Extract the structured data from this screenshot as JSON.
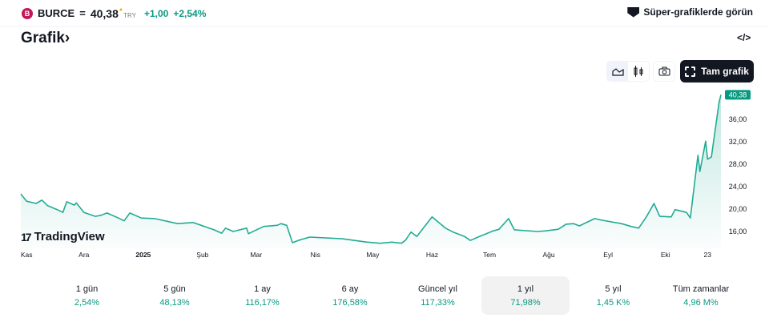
{
  "header": {
    "logo_text": "B",
    "symbol": "BURCE",
    "separator": "=",
    "price": "40,38",
    "currency": "TRY",
    "change": "+1,00",
    "change_percent": "+2,54%",
    "super_charts": "Süper-grafiklerde görün",
    "super_icon": "supercharts-icon"
  },
  "section": {
    "title": "Grafik",
    "chevron": "›",
    "embed": "</>"
  },
  "toolbar": {
    "line_icon": "area-chart-icon",
    "candle_icon": "candles-icon",
    "camera_icon": "camera-icon",
    "full_chart": "Tam grafik",
    "full_icon": "fullscreen-icon"
  },
  "colors": {
    "line": "#22ab94",
    "accent": "#089981",
    "dark": "#131722"
  },
  "watermark": "TradingView",
  "chart_data": {
    "type": "area",
    "ylim": [
      13,
      41
    ],
    "y_ticks": [
      "16,00",
      "20,00",
      "24,00",
      "28,00",
      "32,00",
      "36,00"
    ],
    "y_tick_values": [
      16,
      20,
      24,
      28,
      32,
      36
    ],
    "last_value_label": "40,38",
    "last_value": 40.38,
    "x_ticks": [
      {
        "label": "Kas",
        "date": "2024-11-01"
      },
      {
        "label": "Ara",
        "date": "2024-12-01"
      },
      {
        "label": "2025",
        "date": "2025-01-01"
      },
      {
        "label": "Şub",
        "date": "2025-02-01"
      },
      {
        "label": "Mar",
        "date": "2025-03-01"
      },
      {
        "label": "Nis",
        "date": "2025-04-01"
      },
      {
        "label": "May",
        "date": "2025-05-01"
      },
      {
        "label": "Haz",
        "date": "2025-06-01"
      },
      {
        "label": "Tem",
        "date": "2025-07-01"
      },
      {
        "label": "Ağu",
        "date": "2025-08-01"
      },
      {
        "label": "Eyl",
        "date": "2025-09-01"
      },
      {
        "label": "Eki",
        "date": "2025-10-01"
      },
      {
        "label": "23",
        "date": "2025-10-23"
      }
    ],
    "points": [
      [
        "2024-10-29",
        22.7
      ],
      [
        "2024-11-01",
        21.4
      ],
      [
        "2024-11-06",
        21.0
      ],
      [
        "2024-11-09",
        21.6
      ],
      [
        "2024-11-12",
        20.6
      ],
      [
        "2024-11-17",
        19.9
      ],
      [
        "2024-11-20",
        19.4
      ],
      [
        "2024-11-22",
        21.3
      ],
      [
        "2024-11-26",
        20.7
      ],
      [
        "2024-11-27",
        21.1
      ],
      [
        "2024-12-01",
        19.4
      ],
      [
        "2024-12-07",
        18.7
      ],
      [
        "2024-12-10",
        18.9
      ],
      [
        "2024-12-13",
        19.3
      ],
      [
        "2024-12-19",
        18.4
      ],
      [
        "2024-12-22",
        17.9
      ],
      [
        "2024-12-25",
        19.3
      ],
      [
        "2024-12-27",
        19.0
      ],
      [
        "2024-12-31",
        18.4
      ],
      [
        "2025-01-07",
        18.3
      ],
      [
        "2025-01-19",
        17.4
      ],
      [
        "2025-01-27",
        17.6
      ],
      [
        "2025-02-02",
        16.9
      ],
      [
        "2025-02-07",
        16.3
      ],
      [
        "2025-02-11",
        15.7
      ],
      [
        "2025-02-13",
        16.6
      ],
      [
        "2025-02-17",
        16.0
      ],
      [
        "2025-02-24",
        16.6
      ],
      [
        "2025-02-25",
        15.6
      ],
      [
        "2025-02-28",
        16.1
      ],
      [
        "2025-03-05",
        16.9
      ],
      [
        "2025-03-12",
        17.1
      ],
      [
        "2025-03-14",
        17.4
      ],
      [
        "2025-03-17",
        17.1
      ],
      [
        "2025-03-20",
        14.0
      ],
      [
        "2025-03-23",
        14.4
      ],
      [
        "2025-03-29",
        15.0
      ],
      [
        "2025-04-15",
        14.7
      ],
      [
        "2025-04-28",
        14.1
      ],
      [
        "2025-05-05",
        13.9
      ],
      [
        "2025-05-11",
        14.1
      ],
      [
        "2025-05-16",
        13.9
      ],
      [
        "2025-05-18",
        14.4
      ],
      [
        "2025-05-21",
        15.9
      ],
      [
        "2025-05-24",
        15.1
      ],
      [
        "2025-06-01",
        18.6
      ],
      [
        "2025-06-08",
        16.6
      ],
      [
        "2025-06-12",
        15.9
      ],
      [
        "2025-06-18",
        15.1
      ],
      [
        "2025-06-21",
        14.4
      ],
      [
        "2025-06-25",
        15.0
      ],
      [
        "2025-07-03",
        16.1
      ],
      [
        "2025-07-06",
        16.4
      ],
      [
        "2025-07-11",
        18.3
      ],
      [
        "2025-07-14",
        16.3
      ],
      [
        "2025-07-26",
        16.0
      ],
      [
        "2025-07-30",
        16.1
      ],
      [
        "2025-08-06",
        16.4
      ],
      [
        "2025-08-10",
        17.3
      ],
      [
        "2025-08-14",
        17.4
      ],
      [
        "2025-08-17",
        17.0
      ],
      [
        "2025-08-25",
        18.3
      ],
      [
        "2025-08-29",
        18.0
      ],
      [
        "2025-09-08",
        17.4
      ],
      [
        "2025-09-13",
        16.9
      ],
      [
        "2025-09-17",
        16.6
      ],
      [
        "2025-09-21",
        18.6
      ],
      [
        "2025-09-25",
        21.0
      ],
      [
        "2025-09-28",
        18.7
      ],
      [
        "2025-10-04",
        18.6
      ],
      [
        "2025-10-06",
        19.9
      ],
      [
        "2025-10-12",
        19.4
      ],
      [
        "2025-10-14",
        18.4
      ],
      [
        "2025-10-18",
        29.6
      ],
      [
        "2025-10-19",
        26.7
      ],
      [
        "2025-10-22",
        32.1
      ],
      [
        "2025-10-23",
        28.9
      ],
      [
        "2025-10-25",
        29.3
      ],
      [
        "2025-10-29",
        39.0
      ],
      [
        "2025-10-30",
        40.38
      ]
    ]
  },
  "periods": [
    {
      "label": "1 gün",
      "value": "2,54%"
    },
    {
      "label": "5 gün",
      "value": "48,13%"
    },
    {
      "label": "1 ay",
      "value": "116,17%"
    },
    {
      "label": "6 ay",
      "value": "176,58%"
    },
    {
      "label": "Güncel yıl",
      "value": "117,33%"
    },
    {
      "label": "1 yıl",
      "value": "71,98%",
      "selected": true
    },
    {
      "label": "5 yıl",
      "value": "1,45 K%"
    },
    {
      "label": "Tüm zamanlar",
      "value": "4,96 M%"
    }
  ]
}
